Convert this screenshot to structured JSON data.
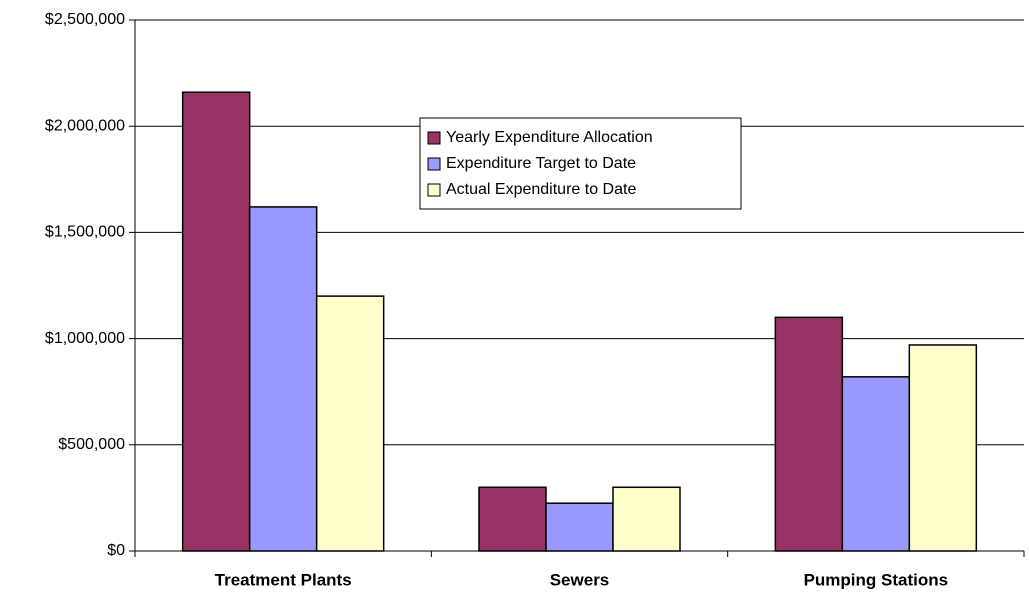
{
  "chart_data": {
    "type": "bar",
    "categories": [
      "Treatment Plants",
      "Sewers",
      "Pumping Stations"
    ],
    "series": [
      {
        "name": "Yearly Expenditure Allocation",
        "color": "#993366",
        "values": [
          2160000,
          300000,
          1100000
        ]
      },
      {
        "name": "Expenditure Target to Date",
        "color": "#9999ff",
        "values": [
          1620000,
          225000,
          820000
        ]
      },
      {
        "name": "Actual Expenditure to Date",
        "color": "#ffffcc",
        "values": [
          1200000,
          300000,
          970000
        ]
      }
    ],
    "ylim": [
      0,
      2500000
    ],
    "yticks": [
      {
        "value": 0,
        "label": "$0"
      },
      {
        "value": 500000,
        "label": "$500,000"
      },
      {
        "value": 1000000,
        "label": "$1,000,000"
      },
      {
        "value": 1500000,
        "label": "$1,500,000"
      },
      {
        "value": 2000000,
        "label": "$2,000,000"
      },
      {
        "value": 2500000,
        "label": "$2,500,000"
      }
    ],
    "grid": true
  }
}
